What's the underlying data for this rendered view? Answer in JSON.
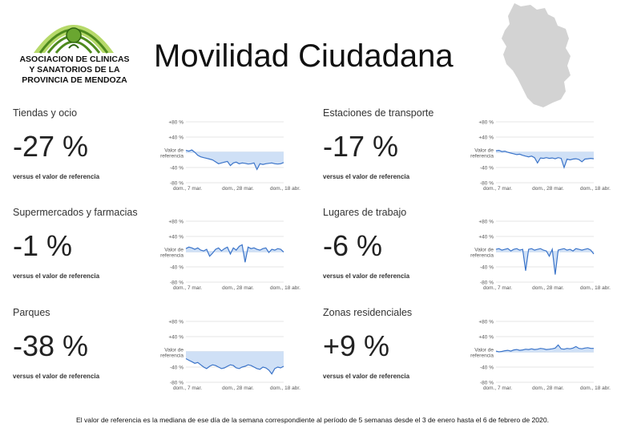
{
  "logo": {
    "lines": [
      "ASOCIACION DE CLINICAS",
      "Y SANATORIOS DE LA",
      "PROVINCIA DE MENDOZA"
    ],
    "colors": {
      "arch_light": "#b6d96a",
      "arch_dark": "#4e8a1e"
    }
  },
  "title": "Movilidad Ciudadana",
  "map_icon": "mendoza-province-map",
  "chart_common": {
    "y_ticks": [
      "+80 %",
      "+40 %",
      "Valor de",
      "referencia",
      "-40 %",
      "-80 %"
    ],
    "x_ticks": [
      "dom., 7 mar.",
      "dom., 28 mar.",
      "dom., 18 abr."
    ],
    "line_color": "#3b74c9",
    "fill_color": "#cfe0f6"
  },
  "panels": [
    {
      "name": "Tiendas y ocio",
      "value": "-27 %",
      "ref_label": "versus el valor de referencia"
    },
    {
      "name": "Estaciones de transporte",
      "value": "-17 %",
      "ref_label": "versus el valor de referencia"
    },
    {
      "name": "Supermercados y farmacias",
      "value": "-1 %",
      "ref_label": "versus el valor de referencia"
    },
    {
      "name": "Lugares de trabajo",
      "value": "-6 %",
      "ref_label": "versus el valor de referencia"
    },
    {
      "name": "Parques",
      "value": "-38 %",
      "ref_label": "versus el valor de referencia"
    },
    {
      "name": "Zonas residenciales",
      "value": "+9 %",
      "ref_label": "versus el valor de referencia"
    }
  ],
  "chart_data": [
    {
      "type": "line",
      "ylim": [
        -80,
        80
      ],
      "y_ticks": [
        "+80 %",
        "+40 %",
        "Valor de referencia",
        "-40 %",
        "-80 %"
      ],
      "x_ticks": [
        "dom., 7 mar.",
        "dom., 28 mar.",
        "dom., 18 abr."
      ],
      "values": [
        5,
        3,
        6,
        0,
        -8,
        -12,
        -14,
        -16,
        -18,
        -20,
        -25,
        -30,
        -28,
        -26,
        -24,
        -35,
        -28,
        -26,
        -30,
        -28,
        -29,
        -31,
        -30,
        -28,
        -45,
        -30,
        -32,
        -30,
        -29,
        -28,
        -30,
        -31,
        -30,
        -27
      ]
    },
    {
      "type": "line",
      "ylim": [
        -80,
        80
      ],
      "y_ticks": [
        "+80 %",
        "+40 %",
        "Valor de referencia",
        "-40 %",
        "-80 %"
      ],
      "x_ticks": [
        "dom., 7 mar.",
        "dom., 28 mar.",
        "dom., 18 abr."
      ],
      "values": [
        4,
        5,
        2,
        3,
        0,
        -2,
        -4,
        -6,
        -5,
        -8,
        -10,
        -12,
        -10,
        -14,
        -28,
        -15,
        -16,
        -14,
        -16,
        -15,
        -17,
        -14,
        -16,
        -40,
        -18,
        -20,
        -18,
        -17,
        -19,
        -25,
        -18,
        -17,
        -16,
        -17
      ]
    },
    {
      "type": "line",
      "ylim": [
        -80,
        80
      ],
      "y_ticks": [
        "+80 %",
        "+40 %",
        "Valor de referencia",
        "-40 %",
        "-80 %"
      ],
      "x_ticks": [
        "dom., 7 mar.",
        "dom., 28 mar.",
        "dom., 18 abr."
      ],
      "values": [
        8,
        12,
        10,
        6,
        10,
        4,
        2,
        6,
        -12,
        -4,
        6,
        10,
        2,
        8,
        12,
        -6,
        10,
        4,
        14,
        18,
        -28,
        12,
        8,
        10,
        6,
        4,
        8,
        10,
        -2,
        6,
        4,
        8,
        6,
        -1
      ]
    },
    {
      "type": "line",
      "ylim": [
        -80,
        80
      ],
      "y_ticks": [
        "+80 %",
        "+40 %",
        "Valor de referencia",
        "-40 %",
        "-80 %"
      ],
      "x_ticks": [
        "dom., 7 mar.",
        "dom., 28 mar.",
        "dom., 18 abr."
      ],
      "values": [
        6,
        8,
        4,
        6,
        8,
        2,
        6,
        8,
        4,
        6,
        -50,
        6,
        8,
        4,
        6,
        8,
        4,
        2,
        -12,
        6,
        -60,
        4,
        6,
        8,
        4,
        6,
        2,
        8,
        6,
        4,
        6,
        8,
        4,
        -6
      ]
    },
    {
      "type": "line",
      "ylim": [
        -80,
        80
      ],
      "y_ticks": [
        "+80 %",
        "+40 %",
        "Valor de referencia",
        "-40 %",
        "-80 %"
      ],
      "x_ticks": [
        "dom., 7 mar.",
        "dom., 28 mar.",
        "dom., 18 abr."
      ],
      "values": [
        -18,
        -22,
        -26,
        -30,
        -28,
        -34,
        -40,
        -44,
        -38,
        -34,
        -36,
        -40,
        -44,
        -42,
        -38,
        -34,
        -36,
        -42,
        -44,
        -40,
        -38,
        -34,
        -36,
        -40,
        -44,
        -46,
        -40,
        -42,
        -48,
        -58,
        -44,
        -40,
        -42,
        -38
      ]
    },
    {
      "type": "line",
      "ylim": [
        -80,
        80
      ],
      "y_ticks": [
        "+80 %",
        "+40 %",
        "Valor de referencia",
        "-40 %",
        "-80 %"
      ],
      "x_ticks": [
        "dom., 7 mar.",
        "dom., 28 mar.",
        "dom., 18 abr."
      ],
      "values": [
        2,
        0,
        1,
        3,
        4,
        2,
        5,
        6,
        4,
        5,
        7,
        6,
        8,
        6,
        7,
        9,
        8,
        6,
        7,
        8,
        10,
        18,
        8,
        7,
        9,
        8,
        10,
        14,
        9,
        8,
        10,
        11,
        9,
        9
      ]
    }
  ],
  "footer": "El valor de referencia es la mediana de ese día de la semana correspondiente al período de 5 semanas desde el 3 de enero hasta el 6 de febrero de 2020."
}
